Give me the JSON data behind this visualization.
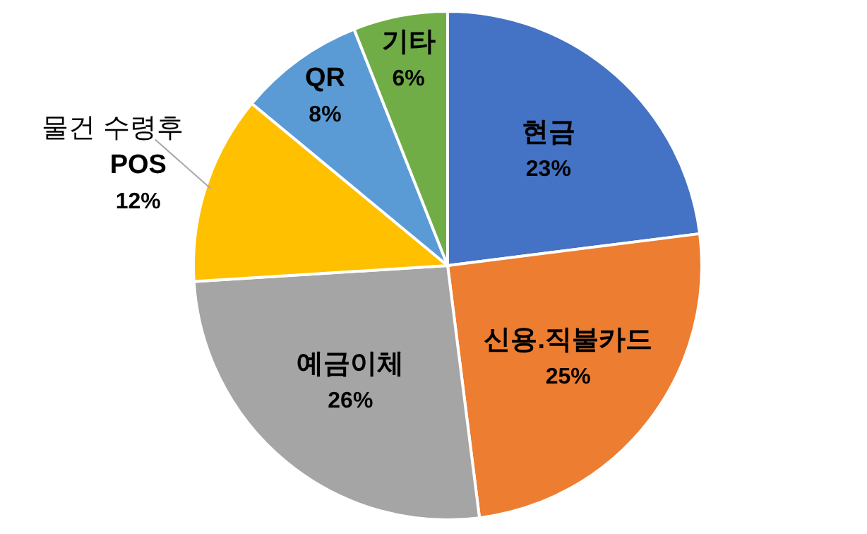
{
  "chart_data": {
    "type": "pie",
    "categories": [
      "현금",
      "신용.직불카드",
      "예금이체",
      "물건 수령후 POS",
      "QR",
      "기타"
    ],
    "values": [
      23,
      25,
      26,
      12,
      8,
      6
    ],
    "value_labels": [
      "23%",
      "25%",
      "26%",
      "12%",
      "8%",
      "6%"
    ],
    "colors": [
      "#4472c4",
      "#ed7d31",
      "#a5a5a5",
      "#ffc000",
      "#5b9bd5",
      "#70ad47"
    ],
    "legend": false
  }
}
